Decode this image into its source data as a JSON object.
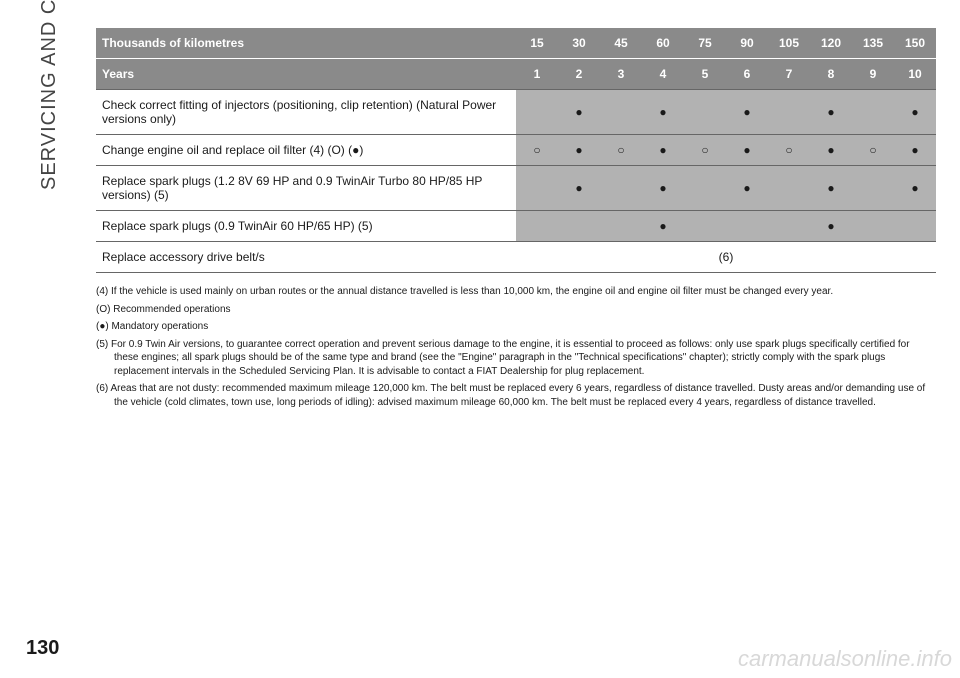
{
  "section_title": "SERVICING AND CARE",
  "page_number": "130",
  "watermark": "carmanualsonline.info",
  "table": {
    "header1_label": "Thousands of kilometres",
    "header1_values": [
      "15",
      "30",
      "45",
      "60",
      "75",
      "90",
      "105",
      "120",
      "135",
      "150"
    ],
    "header2_label": "Years",
    "header2_values": [
      "1",
      "2",
      "3",
      "4",
      "5",
      "6",
      "7",
      "8",
      "9",
      "10"
    ],
    "rows": [
      {
        "label": "Check correct fitting of injectors (positioning, clip retention) (Natural Power versions only)",
        "cells": [
          "",
          "●",
          "",
          "●",
          "",
          "●",
          "",
          "●",
          "",
          "●"
        ]
      },
      {
        "label": "Change engine oil and replace oil filter (4) (O) (●)",
        "cells": [
          "○",
          "●",
          "○",
          "●",
          "○",
          "●",
          "○",
          "●",
          "○",
          "●"
        ]
      },
      {
        "label": "Replace spark plugs (1.2 8V 69 HP and 0.9 TwinAir Turbo 80 HP/85 HP versions) (5)",
        "cells": [
          "",
          "●",
          "",
          "●",
          "",
          "●",
          "",
          "●",
          "",
          "●"
        ]
      },
      {
        "label": "Replace spark plugs (0.9 TwinAir 60 HP/65 HP) (5)",
        "cells": [
          "",
          "",
          "",
          "●",
          "",
          "",
          "",
          "●",
          "",
          ""
        ]
      }
    ],
    "last_row_label": "Replace accessory drive belt/s",
    "last_row_note": "(6)"
  },
  "footnotes": {
    "n4": "(4) If the vehicle is used mainly on urban routes or the annual distance travelled is less than 10,000 km, the engine oil and engine oil filter must be changed every year.",
    "nO": "(O) Recommended operations",
    "nDot": "(●) Mandatory operations",
    "n5": "(5) For 0.9 Twin Air versions, to guarantee correct operation and prevent serious damage to the engine, it is essential to proceed as follows: only use spark plugs specifically certified for these engines; all spark plugs should be of the same type and brand (see the \"Engine\" paragraph in the \"Technical specifications\" chapter); strictly comply with the spark plugs replacement intervals in the Scheduled Servicing Plan. It is advisable to contact a FIAT Dealership for plug replacement.",
    "n6": "(6) Areas that are not dusty: recommended maximum mileage 120,000 km. The belt must be replaced every 6 years, regardless of distance travelled. Dusty areas and/or demanding use of the vehicle (cold climates, town use, long periods of idling): advised maximum mileage 60,000 km. The belt must be replaced every 4 years, regardless of distance travelled."
  },
  "colors": {
    "header_bg": "#8a8a8a",
    "cell_bg": "#b2b2b2",
    "text": "#1a1a1a",
    "watermark": "#d8d8d8"
  }
}
